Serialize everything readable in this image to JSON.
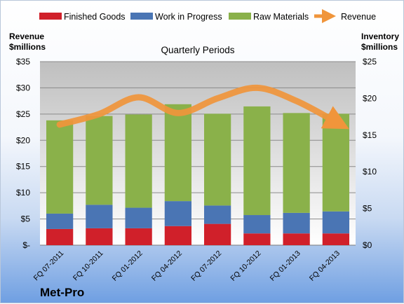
{
  "chart_data": {
    "type": "bar",
    "stacked": true,
    "title": "Quarterly Periods",
    "brand": "Met-Pro",
    "categories": [
      "FQ 07-2011",
      "FQ 10-2011",
      "FQ 01-2012",
      "FQ 04-2012",
      "FQ 07-2012",
      "FQ 10-2012",
      "FQ 01-2013",
      "FQ 04-2013"
    ],
    "series": [
      {
        "name": "Finished Goods",
        "color": "#d0202a",
        "axis": "right",
        "values": [
          2.2,
          2.3,
          2.3,
          2.6,
          2.9,
          1.6,
          1.6,
          1.6
        ]
      },
      {
        "name": "Work in Progress",
        "color": "#4a75b4",
        "axis": "right",
        "values": [
          2.1,
          3.2,
          2.8,
          3.4,
          2.5,
          2.5,
          2.8,
          3.0
        ]
      },
      {
        "name": "Raw Materials",
        "color": "#8ab14a",
        "axis": "right",
        "values": [
          12.7,
          12.1,
          12.7,
          13.2,
          12.5,
          14.8,
          13.6,
          13.3
        ]
      }
    ],
    "line": {
      "name": "Revenue",
      "color": "#f0953b",
      "axis": "left",
      "values": [
        23.0,
        25.0,
        28.2,
        25.2,
        28.0,
        30.0,
        27.5,
        23.5
      ]
    },
    "left_axis": {
      "title_line1": "Revenue",
      "title_line2": "$millions",
      "min": 0,
      "max": 35,
      "step": 5,
      "ticks": [
        "$-",
        "$5",
        "$10",
        "$15",
        "$20",
        "$25",
        "$30",
        "$35"
      ]
    },
    "right_axis": {
      "title_line1": "Inventory",
      "title_line2": "$millions",
      "min": 0,
      "max": 25,
      "step": 5,
      "ticks": [
        "$0",
        "$5",
        "$10",
        "$15",
        "$20",
        "$25"
      ]
    },
    "grid": true,
    "legend_position": "top"
  }
}
